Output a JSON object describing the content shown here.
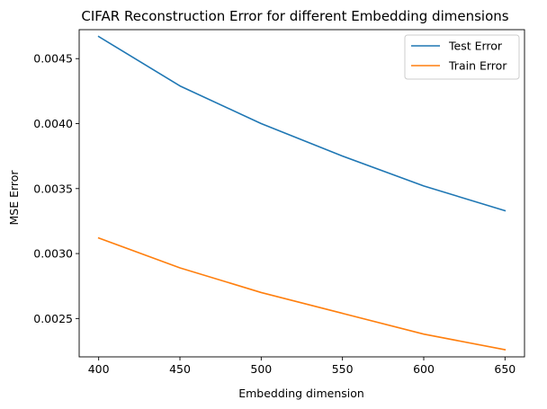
{
  "chart_data": {
    "type": "line",
    "title": "CIFAR Reconstruction Error for different Embedding dimensions",
    "xlabel": "Embedding dimension",
    "ylabel": "MSE Error",
    "x": [
      400,
      450,
      500,
      550,
      600,
      650
    ],
    "x_ticks": [
      400,
      450,
      500,
      550,
      600,
      650
    ],
    "y_ticks": [
      0.0025,
      0.003,
      0.0035,
      0.004,
      0.0045
    ],
    "y_tick_labels": [
      "0.0025",
      "0.0030",
      "0.0035",
      "0.0040",
      "0.0045"
    ],
    "xlim": [
      388,
      662
    ],
    "ylim": [
      0.002205,
      0.004723
    ],
    "grid": false,
    "legend_position": "top-right",
    "series": [
      {
        "name": "Test Error",
        "color": "#1f77b4",
        "values": [
          0.00467,
          0.00429,
          0.004,
          0.00375,
          0.00352,
          0.00333
        ]
      },
      {
        "name": "Train Error",
        "color": "#ff7f0e",
        "values": [
          0.00312,
          0.00289,
          0.0027,
          0.00254,
          0.00238,
          0.00226
        ]
      }
    ]
  }
}
